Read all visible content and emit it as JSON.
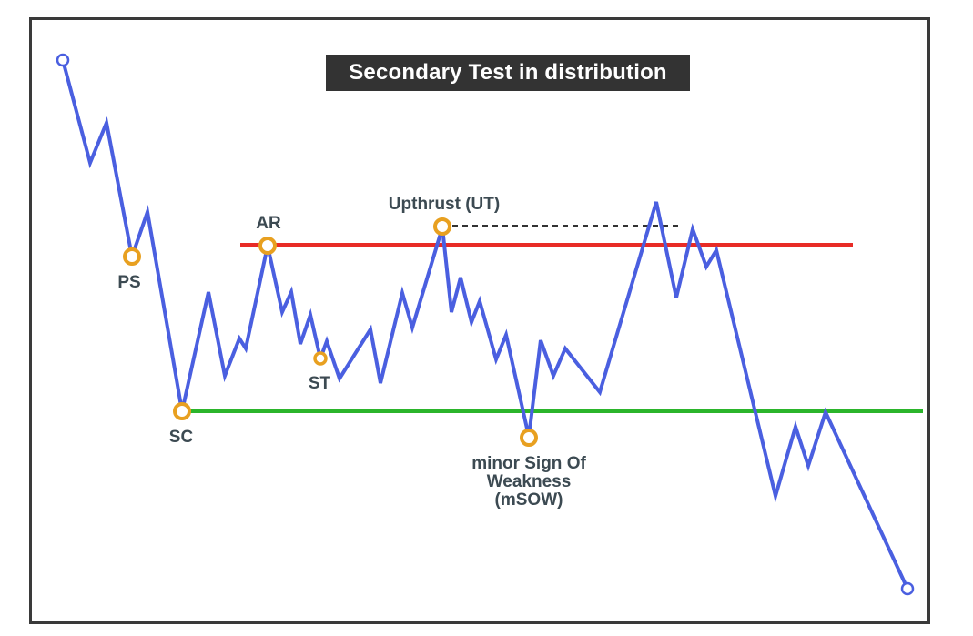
{
  "title": "Secondary Test in distribution",
  "labels": {
    "ps": "PS",
    "sc": "SC",
    "ar": "AR",
    "st": "ST",
    "ut": "Upthrust (UT)",
    "msow": "minor Sign Of Weakness (mSOW)"
  },
  "colors": {
    "price_line": "#4a5fe0",
    "resistance": "#e82b26",
    "support": "#2bb52b",
    "marker": "#e8a020",
    "title_bg": "#333333",
    "label_text": "#3c4a52"
  }
}
